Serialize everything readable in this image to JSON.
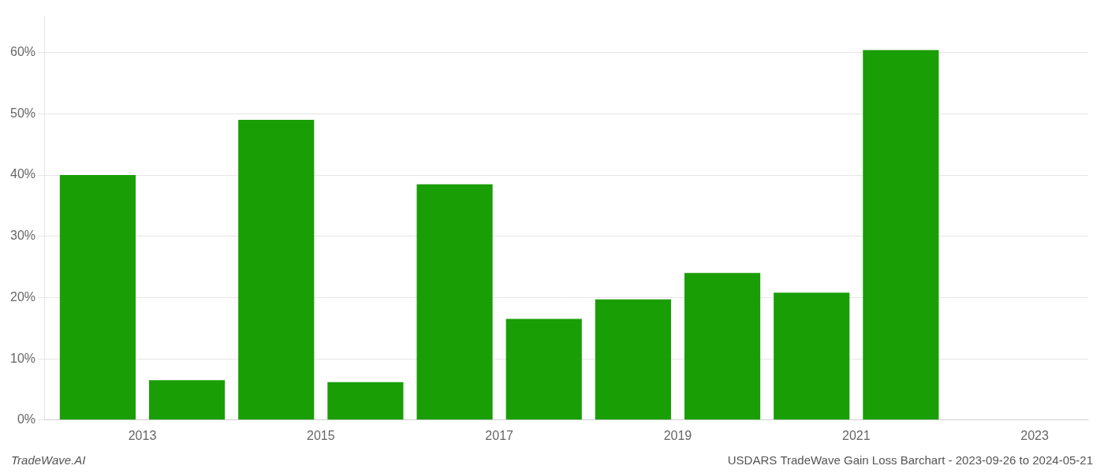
{
  "chart_data": {
    "type": "bar",
    "x": [
      2013,
      2014,
      2015,
      2016,
      2017,
      2018,
      2019,
      2020,
      2021,
      2022
    ],
    "values": [
      0.4,
      0.065,
      0.49,
      0.062,
      0.385,
      0.165,
      0.197,
      0.24,
      0.208,
      0.604
    ],
    "color": "#1a9e06",
    "xlim": [
      2012.4,
      2024.1
    ],
    "xticks": [
      {
        "value": 2013.5,
        "label": "2013"
      },
      {
        "value": 2015.5,
        "label": "2015"
      },
      {
        "value": 2017.5,
        "label": "2017"
      },
      {
        "value": 2019.5,
        "label": "2019"
      },
      {
        "value": 2021.5,
        "label": "2021"
      },
      {
        "value": 2023.5,
        "label": "2023"
      }
    ],
    "ylim": [
      0.0,
      0.66
    ],
    "yticks": [
      {
        "value": 0.0,
        "label": "0%"
      },
      {
        "value": 0.1,
        "label": "10%"
      },
      {
        "value": 0.2,
        "label": "20%"
      },
      {
        "value": 0.3,
        "label": "30%"
      },
      {
        "value": 0.4,
        "label": "40%"
      },
      {
        "value": 0.5,
        "label": "50%"
      },
      {
        "value": 0.6,
        "label": "60%"
      }
    ],
    "grid": true,
    "annotations": [
      "TradeWave.AI",
      "USDARS TradeWave Gain Loss Barchart - 2023-09-26 to 2024-05-21"
    ]
  }
}
